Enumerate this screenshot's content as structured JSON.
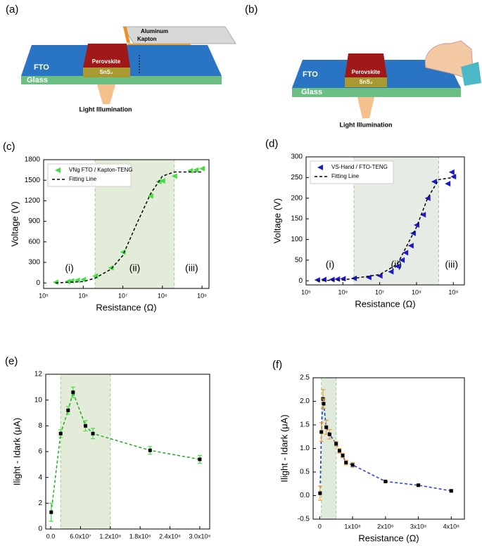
{
  "diagrams": [
    {
      "panel": "(a)",
      "aluminum": "Aluminum",
      "kapton": "Kapton",
      "fto": "FTO",
      "perovskite": "Perovskite",
      "sns2": "SnS₂",
      "glass": "Glass",
      "light": "Light Illumination"
    },
    {
      "panel": "(b)",
      "fto": "FTO",
      "perovskite": "Perovskite",
      "sns2": "SnS₂",
      "glass": "Glass",
      "light": "Light Illumination"
    }
  ],
  "chart_data": [
    {
      "type": "scatter",
      "panel": "(c)",
      "x_label": "Resistance (Ω)",
      "y_label": "Voltage (V)",
      "log_x": true,
      "xlim": [
        100000,
        1500000000
      ],
      "ylim": [
        -80,
        1800
      ],
      "xticks": [
        {
          "value": 100000,
          "label": "10⁵"
        },
        {
          "value": 1000000,
          "label": "10⁶"
        },
        {
          "value": 10000000,
          "label": "10⁷"
        },
        {
          "value": 100000000,
          "label": "10⁸"
        },
        {
          "value": 1000000000,
          "label": "10⁹"
        }
      ],
      "yticks": [
        0,
        300,
        600,
        900,
        1200,
        1500,
        1800
      ],
      "shaded_region": [
        2000000,
        200000000
      ],
      "shade_color": "#e3ebd9",
      "annotations": [
        "(i)",
        "(ii)",
        "(iii)"
      ],
      "series": [
        {
          "name": "VNg FTO / Kapton-TENG",
          "style": "triangles",
          "color": "#44dd44",
          "x": [
            200000,
            400000,
            500000,
            700000,
            1000000,
            2000000,
            5000000,
            10000000,
            50000000,
            80000000,
            100000000,
            200000000,
            500000000,
            700000000,
            1000000000
          ],
          "values": [
            10,
            20,
            30,
            40,
            50,
            100,
            220,
            450,
            1270,
            1480,
            1490,
            1560,
            1640,
            1650,
            1670
          ]
        },
        {
          "name": "Fitting Line",
          "style": "dashed-line",
          "color": "#000000",
          "x": [
            200000,
            1000000,
            2000000,
            5000000,
            10000000,
            20000000,
            50000000,
            100000000,
            200000000,
            500000000,
            1000000000
          ],
          "values": [
            0,
            20,
            70,
            200,
            400,
            800,
            1300,
            1560,
            1620,
            1620,
            1620
          ]
        }
      ]
    },
    {
      "type": "scatter",
      "panel": "(d)",
      "x_label": "Resistance (Ω)",
      "y_label": "Voltage (V)",
      "log_x": true,
      "xlim": [
        100000,
        2000000000
      ],
      "ylim": [
        -10,
        300
      ],
      "xticks": [
        {
          "value": 100000,
          "label": "10⁵"
        },
        {
          "value": 1000000,
          "label": "10⁶"
        },
        {
          "value": 10000000,
          "label": "10⁷"
        },
        {
          "value": 100000000,
          "label": "10⁸"
        },
        {
          "value": 1000000000,
          "label": "10⁹"
        }
      ],
      "yticks": [
        0,
        50,
        100,
        150,
        200,
        250,
        300
      ],
      "shaded_region": [
        2000000,
        400000000
      ],
      "shade_color": "#e6ebe3",
      "annotations": [
        "(i)",
        "(ii)",
        "(iii)"
      ],
      "series": [
        {
          "name": "VS-Hand / FTO-TENG",
          "style": "triangles",
          "color": "#1a1acc",
          "x": [
            200000,
            300000,
            500000,
            700000,
            1000000,
            2000000,
            5000000,
            10000000,
            20000000,
            30000000,
            40000000,
            50000000,
            70000000,
            80000000,
            100000000,
            150000000,
            200000000,
            300000000,
            700000000,
            900000000,
            1000000000
          ],
          "values": [
            2,
            3,
            3,
            4,
            5,
            6,
            8,
            12,
            22,
            35,
            50,
            68,
            85,
            115,
            135,
            160,
            200,
            240,
            235,
            263,
            252
          ]
        },
        {
          "name": "Fitting Line",
          "style": "dashed-line",
          "color": "#000000",
          "x": [
            200000,
            1000000,
            10000000,
            30000000,
            100000000,
            200000000,
            400000000,
            1000000000
          ],
          "values": [
            0,
            2,
            15,
            40,
            130,
            200,
            245,
            250
          ]
        }
      ]
    },
    {
      "type": "scatter",
      "panel": "(e)",
      "x_label": "Resistance (Ω)",
      "y_label": "Ilight - Idark (μA)",
      "log_x": false,
      "xlim": [
        -10000000,
        320000000
      ],
      "ylim": [
        0,
        12
      ],
      "xticks": [
        {
          "value": 0,
          "label": "0.0"
        },
        {
          "value": 60000000,
          "label": "6.0x10⁷"
        },
        {
          "value": 120000000,
          "label": "1.2x10⁸"
        },
        {
          "value": 180000000,
          "label": "1.8x10⁸"
        },
        {
          "value": 240000000,
          "label": "2.4x10⁸"
        },
        {
          "value": 300000000,
          "label": "3.0x10⁸"
        }
      ],
      "yticks": [
        0,
        2,
        4,
        6,
        8,
        10,
        12
      ],
      "shaded_region": [
        20000000,
        120000000
      ],
      "shade_color": "#e3ebd9",
      "series": [
        {
          "style": "squares-dashed",
          "color": "#22aa22",
          "error_color": "#44dd44",
          "x": [
            1000000,
            20000000,
            35000000,
            45000000,
            70000000,
            85000000,
            200000000,
            300000000
          ],
          "values": [
            1.3,
            7.4,
            9.2,
            10.6,
            8.0,
            7.4,
            6.1,
            5.4
          ],
          "errors": [
            0.7,
            0.3,
            0.3,
            0.4,
            0.4,
            0.4,
            0.3,
            0.3
          ]
        }
      ]
    },
    {
      "type": "scatter",
      "panel": "(f)",
      "x_label": "Resistance (Ω)",
      "y_label": "Ilight - Idark (μA)",
      "log_x": false,
      "xlim": [
        -20000000,
        440000000
      ],
      "ylim": [
        -0.5,
        2.5
      ],
      "xticks": [
        0,
        {
          "value": 100000000,
          "label": "1x10⁸"
        },
        {
          "value": 200000000,
          "label": "2x10⁸"
        },
        {
          "value": 300000000,
          "label": "3x10⁸"
        },
        {
          "value": 400000000,
          "label": "4x10⁸"
        }
      ],
      "yticks": [
        {
          "value": -0.5,
          "label": "-0.5"
        },
        {
          "value": 0,
          "label": "0.0"
        },
        0.5,
        {
          "value": 1,
          "label": "1.0"
        },
        1.5,
        {
          "value": 2,
          "label": "2.0"
        },
        2.5
      ],
      "shaded_region": [
        5000000,
        50000000
      ],
      "shade_color": "#dfe9dc",
      "series": [
        {
          "style": "squares-dashed",
          "color": "#1a3ad8",
          "error_color": "#f0a030",
          "x": [
            1000000,
            5000000,
            10000000,
            12000000,
            20000000,
            30000000,
            50000000,
            60000000,
            70000000,
            80000000,
            100000000,
            200000000,
            300000000,
            400000000
          ],
          "values": [
            0.05,
            1.35,
            2.05,
            1.95,
            1.45,
            1.3,
            1.1,
            0.95,
            0.85,
            0.7,
            0.65,
            0.3,
            0.22,
            0.1
          ],
          "errors": [
            0.15,
            0.2,
            0.2,
            0.1,
            0.15,
            0.1,
            0.05,
            0.05,
            0.05,
            0.05,
            0.05,
            0.02,
            0.02,
            0.03
          ]
        }
      ]
    }
  ]
}
